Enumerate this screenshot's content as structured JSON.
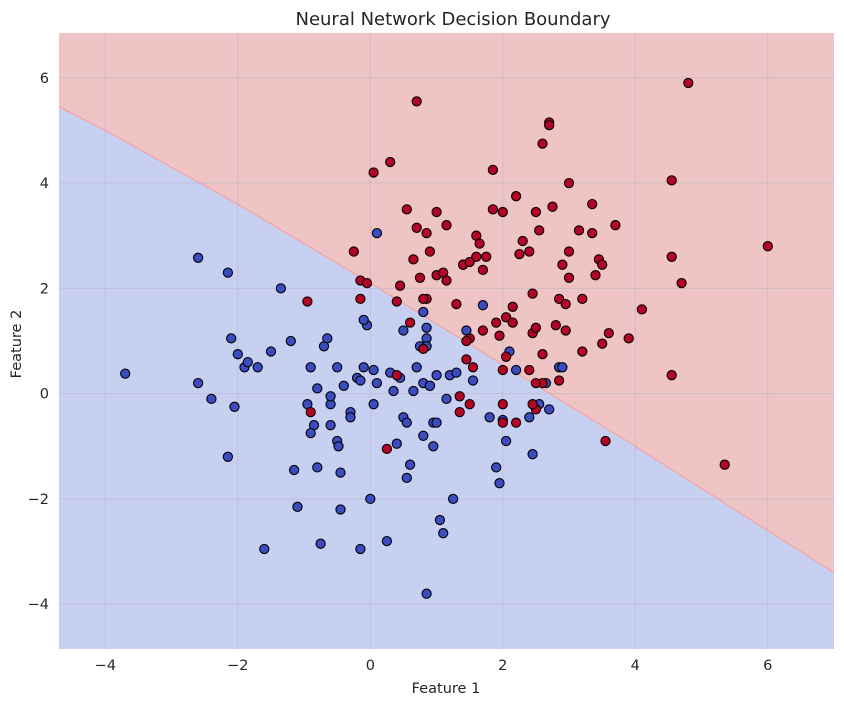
{
  "chart_data": {
    "type": "scatter",
    "title": "Neural Network Decision Boundary",
    "xlabel": "Feature 1",
    "ylabel": "Feature 2",
    "xlim": [
      -4.7,
      7.0
    ],
    "ylim": [
      -4.85,
      6.85
    ],
    "xticks": [
      -4,
      -2,
      0,
      2,
      4,
      6
    ],
    "yticks": [
      -4,
      -2,
      0,
      2,
      4,
      6
    ],
    "xtick_labels": [
      "−4",
      "−2",
      "0",
      "2",
      "4",
      "6"
    ],
    "ytick_labels": [
      "−4",
      "−2",
      "0",
      "2",
      "4",
      "6"
    ],
    "grid": true,
    "colors": {
      "region_class0": "#c8d0f2",
      "region_class1": "#eec4c4",
      "point_class0": "#3b4cc0",
      "point_class1": "#b40426",
      "edge": "#000000",
      "boundary": "#f4a3a3"
    },
    "decision_boundary": [
      [
        -4.7,
        5.45
      ],
      [
        -4.0,
        5.0
      ],
      [
        -2.0,
        3.6
      ],
      [
        0.0,
        2.1
      ],
      [
        2.0,
        0.55
      ],
      [
        4.0,
        -1.0
      ],
      [
        6.0,
        -2.6
      ],
      [
        7.0,
        -3.4
      ]
    ],
    "series": [
      {
        "class": 0,
        "color": "#3b4cc0",
        "points": [
          [
            -3.7,
            0.38
          ],
          [
            -2.6,
            2.58
          ],
          [
            -2.15,
            2.3
          ],
          [
            -2.6,
            0.2
          ],
          [
            -2.4,
            -0.1
          ],
          [
            -2.1,
            1.05
          ],
          [
            -2.0,
            0.75
          ],
          [
            -1.9,
            0.5
          ],
          [
            -1.85,
            0.6
          ],
          [
            -1.7,
            0.5
          ],
          [
            -1.5,
            0.8
          ],
          [
            -1.35,
            2.0
          ],
          [
            -1.2,
            1.0
          ],
          [
            -2.05,
            -0.25
          ],
          [
            -2.15,
            -1.2
          ],
          [
            -1.6,
            -2.95
          ],
          [
            -1.15,
            -1.45
          ],
          [
            -1.1,
            -2.15
          ],
          [
            -0.9,
            0.5
          ],
          [
            -0.85,
            -0.6
          ],
          [
            -0.9,
            -0.75
          ],
          [
            -0.8,
            -1.4
          ],
          [
            -0.95,
            -0.2
          ],
          [
            -0.8,
            0.1
          ],
          [
            -0.6,
            -0.2
          ],
          [
            -0.6,
            -0.05
          ],
          [
            -0.7,
            0.9
          ],
          [
            -0.65,
            1.05
          ],
          [
            -0.6,
            -0.6
          ],
          [
            -0.5,
            -0.9
          ],
          [
            -0.45,
            -1.5
          ],
          [
            -0.48,
            -1.0
          ],
          [
            -0.4,
            0.15
          ],
          [
            -0.3,
            -0.35
          ],
          [
            -0.3,
            -0.45
          ],
          [
            -0.2,
            0.3
          ],
          [
            -0.1,
            0.5
          ],
          [
            -0.15,
            0.25
          ],
          [
            -0.05,
            1.3
          ],
          [
            -0.1,
            1.4
          ],
          [
            -0.5,
            0.5
          ],
          [
            -0.75,
            -2.85
          ],
          [
            -0.45,
            -2.2
          ],
          [
            0.05,
            0.45
          ],
          [
            0.1,
            0.2
          ],
          [
            0.05,
            -0.2
          ],
          [
            0.0,
            -2.0
          ],
          [
            -0.15,
            -2.95
          ],
          [
            0.1,
            3.05
          ],
          [
            0.25,
            -2.8
          ],
          [
            0.3,
            0.4
          ],
          [
            0.35,
            0.05
          ],
          [
            0.4,
            -0.95
          ],
          [
            0.45,
            0.3
          ],
          [
            0.5,
            1.2
          ],
          [
            0.5,
            -0.45
          ],
          [
            0.55,
            -0.55
          ],
          [
            0.6,
            -1.35
          ],
          [
            0.55,
            -1.6
          ],
          [
            0.65,
            0.05
          ],
          [
            0.7,
            0.5
          ],
          [
            0.75,
            0.9
          ],
          [
            0.8,
            0.2
          ],
          [
            0.8,
            -0.8
          ],
          [
            0.85,
            1.05
          ],
          [
            0.85,
            1.25
          ],
          [
            0.8,
            1.55
          ],
          [
            0.9,
            0.15
          ],
          [
            0.95,
            -0.55
          ],
          [
            1.0,
            -0.55
          ],
          [
            0.95,
            -1.0
          ],
          [
            1.0,
            0.35
          ],
          [
            1.05,
            -2.4
          ],
          [
            1.1,
            -2.65
          ],
          [
            0.85,
            -3.8
          ],
          [
            1.15,
            -0.1
          ],
          [
            1.2,
            0.35
          ],
          [
            1.3,
            0.4
          ],
          [
            1.25,
            -2.0
          ],
          [
            1.4,
            2.45
          ],
          [
            1.45,
            1.2
          ],
          [
            1.55,
            0.25
          ],
          [
            1.7,
            1.68
          ],
          [
            1.8,
            -0.45
          ],
          [
            1.9,
            -1.4
          ],
          [
            1.95,
            -1.7
          ],
          [
            2.0,
            -0.5
          ],
          [
            2.05,
            -0.9
          ],
          [
            2.1,
            0.8
          ],
          [
            2.2,
            0.45
          ],
          [
            2.4,
            -0.45
          ],
          [
            2.45,
            -1.15
          ],
          [
            2.55,
            -0.2
          ],
          [
            2.65,
            0.2
          ],
          [
            2.7,
            -0.3
          ],
          [
            2.85,
            0.5
          ],
          [
            2.9,
            0.5
          ],
          [
            0.85,
            0.9
          ],
          [
            0.9,
            0.15
          ]
        ]
      },
      {
        "class": 1,
        "color": "#b40426",
        "points": [
          [
            0.7,
            5.55
          ],
          [
            0.3,
            4.4
          ],
          [
            0.05,
            4.2
          ],
          [
            -0.25,
            2.7
          ],
          [
            -0.15,
            2.15
          ],
          [
            -0.05,
            2.1
          ],
          [
            -0.15,
            1.8
          ],
          [
            -0.95,
            1.75
          ],
          [
            0.4,
            1.75
          ],
          [
            0.45,
            2.05
          ],
          [
            0.6,
            1.35
          ],
          [
            0.55,
            3.5
          ],
          [
            0.65,
            2.55
          ],
          [
            0.7,
            3.15
          ],
          [
            0.75,
            2.2
          ],
          [
            0.85,
            3.05
          ],
          [
            0.85,
            1.8
          ],
          [
            0.9,
            2.7
          ],
          [
            1.0,
            3.45
          ],
          [
            1.0,
            2.25
          ],
          [
            1.1,
            2.3
          ],
          [
            1.15,
            2.15
          ],
          [
            1.15,
            3.2
          ],
          [
            1.3,
            1.7
          ],
          [
            1.4,
            2.45
          ],
          [
            1.5,
            2.5
          ],
          [
            1.6,
            2.6
          ],
          [
            1.6,
            3.0
          ],
          [
            1.65,
            2.85
          ],
          [
            1.7,
            2.35
          ],
          [
            1.75,
            2.6
          ],
          [
            1.5,
            1.05
          ],
          [
            1.45,
            1.0
          ],
          [
            1.45,
            0.65
          ],
          [
            1.55,
            0.5
          ],
          [
            1.7,
            1.2
          ],
          [
            1.85,
            3.5
          ],
          [
            1.85,
            4.25
          ],
          [
            1.9,
            1.35
          ],
          [
            1.95,
            1.1
          ],
          [
            2.0,
            3.45
          ],
          [
            2.0,
            0.45
          ],
          [
            2.05,
            0.7
          ],
          [
            2.05,
            1.45
          ],
          [
            2.15,
            1.35
          ],
          [
            2.15,
            1.65
          ],
          [
            2.2,
            3.75
          ],
          [
            2.25,
            2.65
          ],
          [
            2.3,
            2.9
          ],
          [
            2.4,
            2.7
          ],
          [
            2.45,
            1.9
          ],
          [
            2.45,
            1.15
          ],
          [
            2.5,
            3.45
          ],
          [
            2.55,
            3.1
          ],
          [
            2.5,
            1.25
          ],
          [
            2.6,
            4.75
          ],
          [
            2.7,
            5.15
          ],
          [
            2.75,
            3.55
          ],
          [
            2.8,
            1.3
          ],
          [
            2.85,
            1.8
          ],
          [
            2.9,
            2.45
          ],
          [
            2.95,
            1.7
          ],
          [
            2.95,
            1.2
          ],
          [
            3.0,
            2.2
          ],
          [
            3.0,
            4.0
          ],
          [
            3.0,
            2.7
          ],
          [
            3.15,
            3.1
          ],
          [
            3.2,
            1.8
          ],
          [
            3.2,
            0.8
          ],
          [
            3.35,
            3.6
          ],
          [
            3.4,
            2.25
          ],
          [
            3.35,
            3.05
          ],
          [
            3.45,
            2.55
          ],
          [
            3.5,
            2.45
          ],
          [
            3.5,
            0.95
          ],
          [
            3.55,
            -0.9
          ],
          [
            3.6,
            1.15
          ],
          [
            3.7,
            3.2
          ],
          [
            3.9,
            1.05
          ],
          [
            4.1,
            1.6
          ],
          [
            4.55,
            2.6
          ],
          [
            4.55,
            0.35
          ],
          [
            4.55,
            4.05
          ],
          [
            4.7,
            2.1
          ],
          [
            4.8,
            5.9
          ],
          [
            5.35,
            -1.35
          ],
          [
            6.0,
            2.8
          ],
          [
            2.7,
            5.1
          ],
          [
            2.4,
            0.45
          ],
          [
            2.6,
            0.75
          ],
          [
            2.5,
            -0.3
          ],
          [
            2.45,
            -0.2
          ],
          [
            2.2,
            -0.55
          ],
          [
            2.0,
            -0.55
          ],
          [
            2.0,
            -0.2
          ],
          [
            1.5,
            -0.2
          ],
          [
            1.35,
            -0.05
          ],
          [
            1.35,
            -0.35
          ],
          [
            0.25,
            -1.05
          ],
          [
            0.4,
            0.35
          ],
          [
            -0.9,
            -0.35
          ],
          [
            0.8,
            0.85
          ],
          [
            2.6,
            0.2
          ],
          [
            2.85,
            0.25
          ],
          [
            2.5,
            0.2
          ],
          [
            0.8,
            1.8
          ]
        ]
      }
    ]
  }
}
